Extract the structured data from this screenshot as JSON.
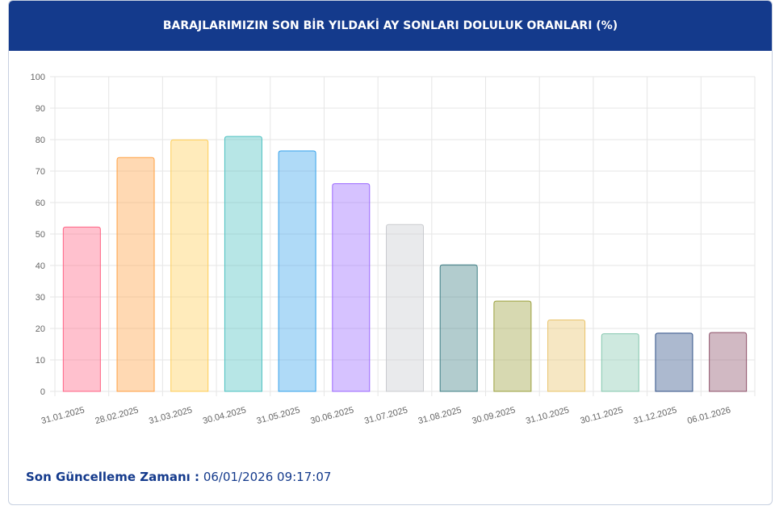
{
  "chart_data": {
    "type": "bar",
    "title": "BARAJLARIMIZIN SON BİR YILDAKİ AY SONLARI DOLULUK ORANLARI (%)",
    "categories": [
      "31.01.2025",
      "28.02.2025",
      "31.03.2025",
      "30.04.2025",
      "31.05.2025",
      "30.06.2025",
      "31.07.2025",
      "31.08.2025",
      "30.09.2025",
      "31.10.2025",
      "30.11.2025",
      "31.12.2025",
      "06.01.2026"
    ],
    "values": [
      52.2,
      74.3,
      79.9,
      81.0,
      76.4,
      66.0,
      53.0,
      40.2,
      28.7,
      22.7,
      18.3,
      18.5,
      18.7
    ],
    "colors": [
      "#ff6384",
      "#ff9f40",
      "#ffcd56",
      "#4bc0c0",
      "#36a2eb",
      "#9966ff",
      "#c9cbcf",
      "#3f7f85",
      "#9aa03c",
      "#e9c46a",
      "#84c7ae",
      "#2f4f86",
      "#8d5068"
    ],
    "ylim": [
      0,
      100
    ],
    "yticks": [
      0,
      10,
      20,
      30,
      40,
      50,
      60,
      70,
      80,
      90,
      100
    ],
    "grid": true
  },
  "footer": {
    "label": "Son Güncelleme Zamanı :",
    "value": "06/01/2026 09:17:07"
  }
}
